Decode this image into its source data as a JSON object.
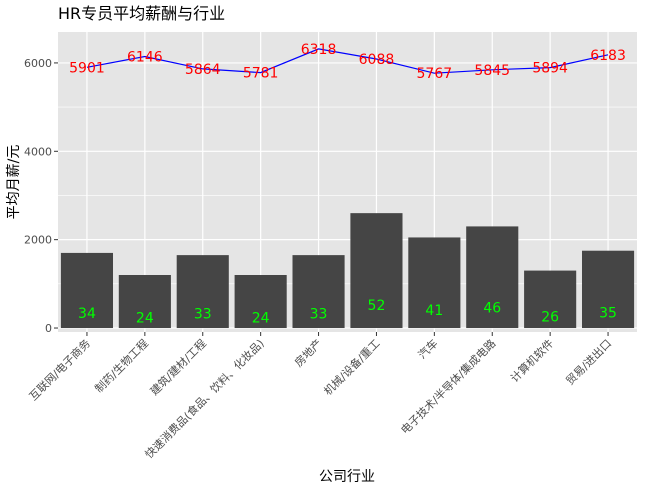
{
  "chart_data": {
    "type": "bar",
    "title": "HR专员平均薪酬与行业",
    "xlabel": "公司行业",
    "ylabel": "平均月薪/元",
    "ylim": [
      -90,
      6700
    ],
    "yticks": [
      0,
      2000,
      4000,
      6000
    ],
    "grid": true,
    "categories": [
      "互联网/电子商务",
      "制药/生物工程",
      "建筑/建材/工程",
      "快速消费品(食品、饮料、化妆品)",
      "房地产",
      "机械/设备/重工",
      "汽车",
      "电子技术/半导体/集成电路",
      "计算机软件",
      "贸易/进出口"
    ],
    "series": [
      {
        "type": "bar",
        "values": [
          1700,
          1200,
          1650,
          1200,
          1650,
          2600,
          2050,
          2300,
          1300,
          1750
        ]
      },
      {
        "type": "line",
        "values": [
          5901,
          6146,
          5864,
          5781,
          6318,
          6088,
          5767,
          5845,
          5894,
          6183
        ]
      }
    ],
    "bar_labels": [
      34,
      24,
      33,
      24,
      33,
      52,
      41,
      46,
      26,
      35
    ],
    "line_labels": [
      5901,
      6146,
      5864,
      5781,
      6318,
      6088,
      5767,
      5845,
      5894,
      6183
    ],
    "colors": {
      "panel": "#e5e5e5",
      "grid": "#ffffff",
      "bar": "#454545",
      "line": "#0000ff",
      "line_label": "#ff0000",
      "bar_label": "#00ff00"
    }
  }
}
